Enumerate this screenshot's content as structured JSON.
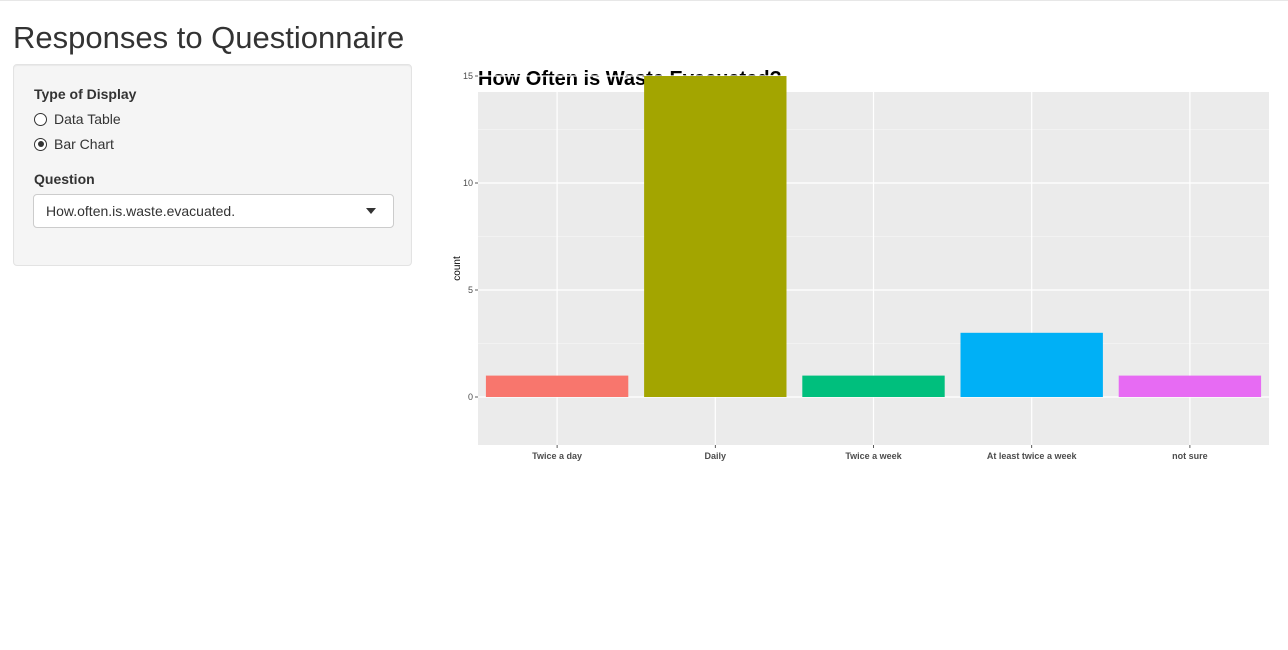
{
  "page": {
    "title": "Responses to Questionnaire"
  },
  "sidebar": {
    "display_label": "Type of Display",
    "display_options": [
      {
        "label": "Data Table",
        "selected": false
      },
      {
        "label": "Bar Chart",
        "selected": true
      }
    ],
    "question_label": "Question",
    "question_value": "How.often.is.waste.evacuated."
  },
  "chart_data": {
    "type": "bar",
    "title": "How Often is Waste Evacuated?",
    "xlabel": "",
    "ylabel": "count",
    "categories": [
      "Twice a day",
      "Daily",
      "Twice a week",
      "At least twice a week",
      "not sure"
    ],
    "values": [
      1,
      15,
      1,
      3,
      1
    ],
    "colors": [
      "#F8766D",
      "#A3A500",
      "#00BF7D",
      "#00B0F6",
      "#E76BF3"
    ],
    "yticks": [
      0,
      5,
      10,
      15
    ],
    "ylim": [
      0,
      15.75
    ],
    "grid": true,
    "panel_background": "#EBEBEB"
  }
}
